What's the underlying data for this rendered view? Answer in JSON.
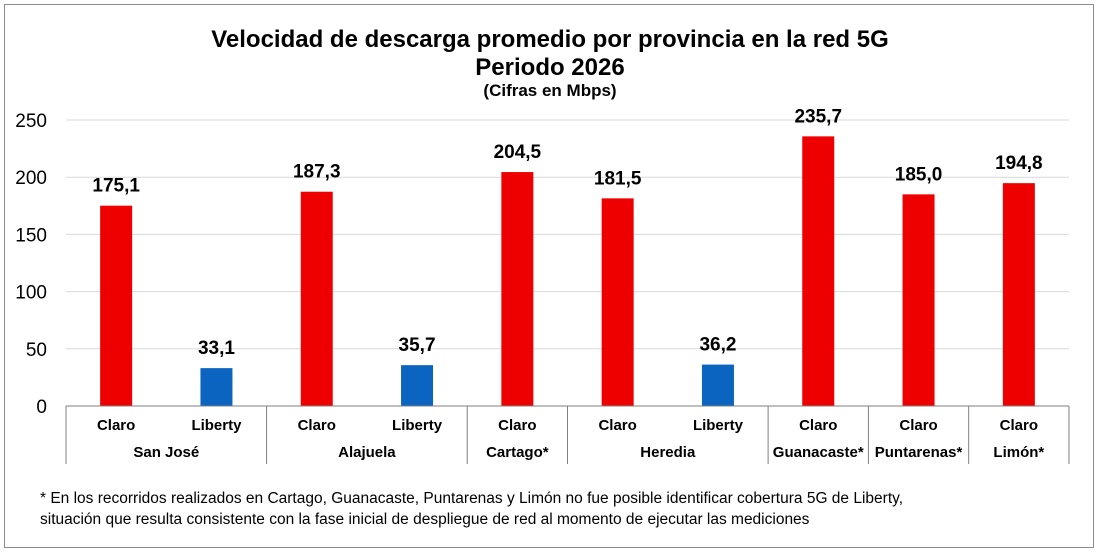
{
  "chart_data": {
    "type": "bar",
    "title": "Velocidad de descarga promedio por provincia en la red 5G",
    "subtitle": "Periodo 2026",
    "units_note": "(Cifras en Mbps)",
    "ylim": [
      0,
      250
    ],
    "yticks": [
      0,
      50,
      100,
      150,
      200,
      250
    ],
    "grid": true,
    "groups": [
      {
        "name": "San José",
        "bars": [
          {
            "operator": "Claro",
            "value": 175.1,
            "label": "175,1"
          },
          {
            "operator": "Liberty",
            "value": 33.1,
            "label": "33,1"
          }
        ]
      },
      {
        "name": "Alajuela",
        "bars": [
          {
            "operator": "Claro",
            "value": 187.3,
            "label": "187,3"
          },
          {
            "operator": "Liberty",
            "value": 35.7,
            "label": "35,7"
          }
        ]
      },
      {
        "name": "Cartago*",
        "bars": [
          {
            "operator": "Claro",
            "value": 204.5,
            "label": "204,5"
          }
        ]
      },
      {
        "name": "Heredia",
        "bars": [
          {
            "operator": "Claro",
            "value": 181.5,
            "label": "181,5"
          },
          {
            "operator": "Liberty",
            "value": 36.2,
            "label": "36,2"
          }
        ]
      },
      {
        "name": "Guanacaste*",
        "bars": [
          {
            "operator": "Claro",
            "value": 235.7,
            "label": "235,7"
          }
        ]
      },
      {
        "name": "Puntarenas*",
        "bars": [
          {
            "operator": "Claro",
            "value": 185.0,
            "label": "185,0"
          }
        ]
      },
      {
        "name": "Limón*",
        "bars": [
          {
            "operator": "Claro",
            "value": 194.8,
            "label": "194,8"
          }
        ]
      }
    ]
  },
  "colors": {
    "Claro": "#ee0000",
    "Liberty": "#0a64c0",
    "grid": "#d9d9d9",
    "axis": "#7f7f7f"
  },
  "footnote": {
    "line1": "* En los recorridos realizados en Cartago, Guanacaste, Puntarenas y Limón no fue posible identificar cobertura 5G de Liberty,",
    "line2": "situación que resulta consistente con la fase inicial de despliegue de red al momento de ejecutar las mediciones"
  }
}
